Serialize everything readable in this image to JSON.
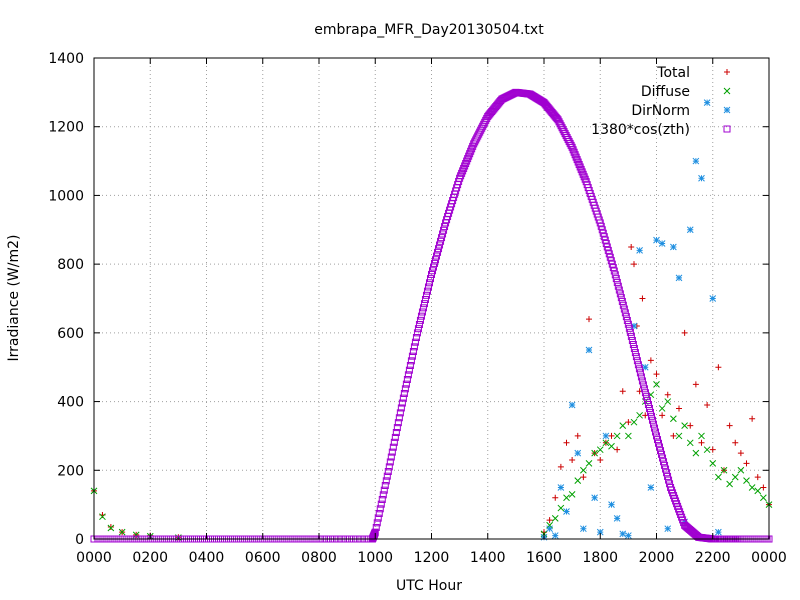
{
  "chart_data": {
    "type": "scatter",
    "title": "embrapa_MFR_Day20130504.txt",
    "xlabel": "UTC Hour",
    "ylabel": "Irradiance (W/m2)",
    "xlim": [
      0,
      24
    ],
    "ylim": [
      0,
      1400
    ],
    "xticks": [
      {
        "value": 0,
        "label": "0000"
      },
      {
        "value": 2,
        "label": "0200"
      },
      {
        "value": 4,
        "label": "0400"
      },
      {
        "value": 6,
        "label": "0600"
      },
      {
        "value": 8,
        "label": "0800"
      },
      {
        "value": 10,
        "label": "1000"
      },
      {
        "value": 12,
        "label": "1200"
      },
      {
        "value": 14,
        "label": "1400"
      },
      {
        "value": 16,
        "label": "1600"
      },
      {
        "value": 18,
        "label": "1800"
      },
      {
        "value": 20,
        "label": "2000"
      },
      {
        "value": 22,
        "label": "2200"
      },
      {
        "value": 24,
        "label": "0000"
      }
    ],
    "yticks": [
      0,
      200,
      400,
      600,
      800,
      1000,
      1200,
      1400
    ],
    "grid": true,
    "legend_position": "top-right",
    "series": [
      {
        "name": "Total",
        "marker": "plus",
        "color": "#cc0000",
        "x": [
          0.0,
          0.3,
          0.6,
          1.0,
          1.5,
          2.0,
          3.0,
          16.0,
          16.2,
          16.4,
          16.6,
          16.8,
          17.0,
          17.2,
          17.4,
          17.6,
          17.8,
          18.0,
          18.2,
          18.4,
          18.6,
          18.8,
          19.0,
          19.1,
          19.2,
          19.3,
          19.4,
          19.5,
          19.6,
          19.8,
          20.0,
          20.2,
          20.4,
          20.6,
          20.8,
          21.0,
          21.2,
          21.4,
          21.6,
          21.8,
          22.0,
          22.2,
          22.4,
          22.6,
          22.8,
          23.0,
          23.2,
          23.4,
          23.6,
          23.8,
          24.0
        ],
        "y": [
          140,
          70,
          35,
          20,
          12,
          10,
          5,
          20,
          55,
          120,
          210,
          280,
          230,
          300,
          180,
          640,
          250,
          230,
          280,
          300,
          260,
          430,
          340,
          850,
          800,
          620,
          430,
          700,
          360,
          520,
          480,
          360,
          420,
          300,
          380,
          600,
          330,
          450,
          280,
          390,
          260,
          500,
          200,
          330,
          280,
          250,
          220,
          350,
          180,
          150,
          100
        ]
      },
      {
        "name": "Diffuse",
        "marker": "cross",
        "color": "#00a000",
        "x": [
          0.0,
          0.3,
          0.6,
          1.0,
          1.5,
          2.0,
          3.0,
          16.0,
          16.2,
          16.4,
          16.6,
          16.8,
          17.0,
          17.2,
          17.4,
          17.6,
          17.8,
          18.0,
          18.2,
          18.4,
          18.6,
          18.8,
          19.0,
          19.2,
          19.4,
          19.6,
          19.8,
          20.0,
          20.2,
          20.4,
          20.6,
          20.8,
          21.0,
          21.2,
          21.4,
          21.6,
          21.8,
          22.0,
          22.2,
          22.4,
          22.6,
          22.8,
          23.0,
          23.2,
          23.4,
          23.6,
          23.8,
          24.0
        ],
        "y": [
          140,
          65,
          32,
          20,
          12,
          8,
          4,
          15,
          40,
          60,
          90,
          120,
          130,
          170,
          200,
          220,
          250,
          260,
          280,
          270,
          300,
          330,
          300,
          340,
          360,
          400,
          420,
          450,
          380,
          400,
          350,
          300,
          330,
          280,
          250,
          300,
          260,
          220,
          180,
          200,
          160,
          180,
          200,
          170,
          150,
          140,
          120,
          100
        ]
      },
      {
        "name": "DirNorm",
        "marker": "star",
        "color": "#1f8fe0",
        "x": [
          16.0,
          16.2,
          16.4,
          16.6,
          16.8,
          17.0,
          17.2,
          17.4,
          17.6,
          17.8,
          18.0,
          18.2,
          18.4,
          18.6,
          18.8,
          19.0,
          19.2,
          19.4,
          19.6,
          19.8,
          20.0,
          20.2,
          20.4,
          20.6,
          20.8,
          21.0,
          21.2,
          21.4,
          21.6,
          21.8,
          22.0,
          22.2
        ],
        "y": [
          5,
          30,
          10,
          150,
          80,
          390,
          250,
          30,
          550,
          120,
          20,
          300,
          100,
          60,
          15,
          10,
          620,
          840,
          500,
          150,
          870,
          860,
          30,
          850,
          760,
          50,
          900,
          1100,
          1050,
          1270,
          700,
          20
        ]
      },
      {
        "name": "1380*cos(zth)",
        "marker": "square",
        "color": "#a000d0",
        "x": [
          0,
          2,
          4,
          6,
          8,
          9.9,
          10.0,
          10.5,
          11.0,
          11.5,
          12.0,
          12.5,
          13.0,
          13.5,
          14.0,
          14.5,
          15.0,
          15.5,
          16.0,
          16.5,
          17.0,
          17.5,
          18.0,
          18.5,
          19.0,
          19.5,
          20.0,
          20.5,
          21.0,
          21.5,
          22.0,
          22.1,
          23,
          24
        ],
        "y": [
          0,
          0,
          0,
          0,
          0,
          0,
          20,
          210,
          410,
          600,
          770,
          920,
          1050,
          1150,
          1230,
          1280,
          1300,
          1295,
          1270,
          1220,
          1140,
          1040,
          920,
          780,
          625,
          460,
          300,
          150,
          40,
          5,
          0,
          0,
          0,
          0
        ]
      }
    ]
  }
}
